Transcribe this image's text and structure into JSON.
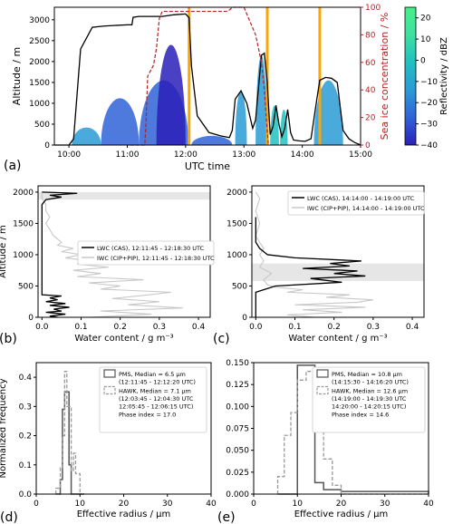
{
  "colors": {
    "black": "#000000",
    "sea_ice": "#b22222",
    "orange": "#ffa500",
    "gray_light": "#c8c8c8",
    "gray_dark": "#555555",
    "band": "#e6e6e6",
    "cmap": [
      "#2a1fb8",
      "#2f63d8",
      "#2a9bd6",
      "#21c0c0",
      "#3fe0a0",
      "#46f08a"
    ]
  },
  "chart_data": [
    {
      "id": "a",
      "panel_label": "(a)",
      "type": "line",
      "xlabel": "UTC time",
      "ylabel": "Altitude / m",
      "y2label": "Sea ice concentration / %",
      "colorbar_label": "Reflectivity / dBZ",
      "xlim": [
        9.75,
        15.0
      ],
      "ylim": [
        0,
        3300
      ],
      "y2lim": [
        0,
        100
      ],
      "colorbar_lim": [
        -40,
        25
      ],
      "xticks": [
        10,
        11,
        12,
        13,
        14,
        15
      ],
      "xtick_labels": [
        "10:00",
        "11:00",
        "12:00",
        "13:00",
        "14:00",
        "15:00"
      ],
      "yticks": [
        0,
        500,
        1000,
        1500,
        2000,
        2500,
        3000
      ],
      "y2ticks": [
        0,
        20,
        40,
        60,
        80,
        100
      ],
      "colorbar_ticks": [
        -40,
        -30,
        -20,
        -10,
        0,
        10,
        20
      ],
      "series": [
        {
          "kind": "altitude",
          "x": [
            9.75,
            10.0,
            10.08,
            10.2,
            10.4,
            10.6,
            11.0,
            11.08,
            11.1,
            11.2,
            11.6,
            11.8,
            12.0,
            12.06,
            12.1,
            12.2,
            12.4,
            12.6,
            12.75,
            12.8,
            12.85,
            12.95,
            13.05,
            13.15,
            13.2,
            13.3,
            13.35,
            13.4,
            13.45,
            13.5,
            13.55,
            13.6,
            13.65,
            13.7,
            13.75,
            13.8,
            13.85,
            13.95,
            14.05,
            14.15,
            14.25,
            14.3,
            14.4,
            14.5,
            14.6,
            14.7,
            14.8,
            14.9,
            15.0
          ],
          "y": [
            0,
            0,
            150,
            2300,
            2820,
            2850,
            2880,
            2880,
            3060,
            3080,
            3080,
            3120,
            3140,
            3050,
            1900,
            700,
            300,
            220,
            180,
            350,
            1100,
            1300,
            1000,
            400,
            600,
            2150,
            2200,
            1500,
            250,
            450,
            950,
            500,
            200,
            400,
            850,
            300,
            120,
            100,
            90,
            150,
            1100,
            1550,
            1620,
            1600,
            1500,
            350,
            150,
            60,
            0
          ]
        },
        {
          "kind": "sea_ice",
          "x": [
            11.05,
            11.3,
            11.32,
            11.35,
            11.45,
            11.5,
            11.55,
            11.6,
            12.7,
            12.75,
            12.8,
            13.0,
            13.05,
            13.1,
            13.2,
            13.25,
            13.3,
            13.35,
            13.4,
            13.42
          ],
          "y": [
            0,
            0,
            15,
            50,
            58,
            70,
            92,
            97,
            97,
            98,
            100,
            100,
            95,
            90,
            80,
            70,
            60,
            40,
            10,
            0
          ]
        }
      ],
      "radar_clouds": [
        {
          "x0": 10.05,
          "x1": 10.55,
          "top": 420,
          "color_index": 2
        },
        {
          "x0": 10.55,
          "x1": 11.2,
          "top": 1120,
          "color_index": 1
        },
        {
          "x0": 11.2,
          "x1": 12.05,
          "top": 1550,
          "color_index": 1
        },
        {
          "x0": 11.5,
          "x1": 12.0,
          "top": 2400,
          "color_index": 0
        },
        {
          "x0": 12.1,
          "x1": 12.8,
          "top": 220,
          "color_index": 1
        },
        {
          "x0": 12.85,
          "x1": 13.05,
          "top": 1300,
          "color_index": 2
        },
        {
          "x0": 13.2,
          "x1": 13.4,
          "top": 2150,
          "color_index": 2
        },
        {
          "x0": 13.45,
          "x1": 13.6,
          "top": 950,
          "color_index": 3
        },
        {
          "x0": 13.62,
          "x1": 13.75,
          "top": 850,
          "color_index": 3
        },
        {
          "x0": 14.2,
          "x1": 14.7,
          "top": 1550,
          "color_index": 2
        }
      ],
      "highlight_times": [
        12.06,
        13.4,
        14.3
      ]
    },
    {
      "id": "b",
      "panel_label": "(b)",
      "type": "line",
      "xlabel": "Water content / g m⁻³",
      "ylabel": "Altitude / m",
      "xlim": [
        -0.01,
        0.43
      ],
      "ylim": [
        0,
        2100
      ],
      "xticks": [
        0.0,
        0.1,
        0.2,
        0.3,
        0.4
      ],
      "xtick_labels": [
        "0.0",
        "0.1",
        "0.2",
        "0.3",
        "0.4"
      ],
      "yticks": [
        0,
        500,
        1000,
        1500,
        2000
      ],
      "band": [
        1880,
        2000
      ],
      "legend_position": "center-right",
      "series": [
        {
          "name": "LWC (CAS), 12:11:45 - 12:18:30 UTC",
          "color": "black",
          "y": [
            0,
            20,
            50,
            80,
            100,
            130,
            160,
            190,
            220,
            250,
            280,
            310,
            340,
            360,
            400,
            1800,
            1880,
            1920,
            1950,
            1980,
            2000
          ],
          "x": [
            0.04,
            0.02,
            0.06,
            0.01,
            0.05,
            0.03,
            0.07,
            0.02,
            0.06,
            0.01,
            0.04,
            0.02,
            0.05,
            0.0,
            0.0,
            0.0,
            0.01,
            0.05,
            0.02,
            0.09,
            0.0
          ]
        },
        {
          "name": "IWC (CIP+PIP), 12:11:45 - 12:18:30 UTC",
          "color": "gray_light",
          "y": [
            0,
            50,
            100,
            150,
            200,
            250,
            300,
            350,
            400,
            450,
            500,
            550,
            600,
            650,
            700,
            750,
            800,
            850,
            900,
            950,
            1000,
            1050,
            1100,
            1150,
            1200,
            1300,
            1400,
            1500,
            1600,
            1700,
            1800,
            1900,
            2000
          ],
          "x": [
            0.12,
            0.28,
            0.15,
            0.36,
            0.22,
            0.3,
            0.18,
            0.26,
            0.33,
            0.15,
            0.2,
            0.12,
            0.26,
            0.09,
            0.15,
            0.08,
            0.17,
            0.09,
            0.12,
            0.06,
            0.1,
            0.05,
            0.08,
            0.04,
            0.05,
            0.03,
            0.02,
            0.01,
            0.02,
            0.01,
            0.01,
            0.0,
            0.0
          ]
        }
      ]
    },
    {
      "id": "c",
      "panel_label": "(c)",
      "type": "line",
      "xlabel": "Water content / g m⁻³",
      "ylabel": "",
      "xlim": [
        -0.01,
        0.43
      ],
      "ylim": [
        0,
        2100
      ],
      "xticks": [
        0.0,
        0.1,
        0.2,
        0.3,
        0.4
      ],
      "xtick_labels": [
        "0.0",
        "0.1",
        "0.2",
        "0.3",
        "0.4"
      ],
      "yticks": [
        0,
        500,
        1000,
        1500,
        2000
      ],
      "band": [
        580,
        860
      ],
      "legend_position": "top-right",
      "series": [
        {
          "name": "LWC (CAS), 14:14:00 - 14:19:00 UTC",
          "color": "black",
          "y": [
            0,
            400,
            500,
            560,
            620,
            660,
            700,
            740,
            780,
            820,
            860,
            900,
            950,
            1000,
            1100,
            1200,
            1600
          ],
          "x": [
            0.0,
            0.0,
            0.05,
            0.22,
            0.14,
            0.28,
            0.2,
            0.26,
            0.12,
            0.24,
            0.19,
            0.27,
            0.1,
            0.03,
            0.01,
            0.0,
            0.0
          ]
        },
        {
          "name": "IWC (CIP+PIP), 14:14:00 - 14:19:00 UTC",
          "color": "gray_light",
          "y": [
            0,
            40,
            80,
            120,
            160,
            200,
            240,
            280,
            320,
            360,
            400,
            440,
            480,
            520,
            600,
            700,
            800,
            900,
            1000,
            1100,
            1300,
            1500,
            1700,
            1900,
            2000
          ],
          "x": [
            0.15,
            0.08,
            0.22,
            0.12,
            0.28,
            0.1,
            0.26,
            0.3,
            0.18,
            0.24,
            0.08,
            0.12,
            0.05,
            0.03,
            0.02,
            0.04,
            0.01,
            0.02,
            0.01,
            0.02,
            0.0,
            0.01,
            0.0,
            0.01,
            0.0
          ]
        }
      ]
    },
    {
      "id": "d",
      "panel_label": "(d)",
      "type": "bar",
      "xlabel": "Effective radius / μm",
      "ylabel": "Normalized frequency",
      "xlim": [
        0,
        40
      ],
      "ylim": [
        0,
        0.45
      ],
      "xticks": [
        0,
        10,
        20,
        30,
        40
      ],
      "yticks": [
        0.0,
        0.1,
        0.2,
        0.3,
        0.4
      ],
      "ytick_labels": [
        "0.0",
        "0.1",
        "0.2",
        "0.3",
        "0.4"
      ],
      "legend_position": "top-right",
      "bin_edges": [
        4.5,
        5.5,
        6.0,
        6.5,
        7.0,
        7.5,
        8.0,
        8.5,
        9.0,
        10.0,
        11.0
      ],
      "series": [
        {
          "name": "PMS, Median = 6.5 μm (12:11:45 - 12:12:20 UTC)",
          "style": "solid",
          "values": [
            0.0,
            0.05,
            0.29,
            0.35,
            0.35,
            0.1,
            0.0,
            0.0,
            0.0,
            0.0
          ]
        },
        {
          "name": "HAWK, Median = 7.1 μm (12:03:45 - 12:04:30 UTC; 12:05:45 - 12:06:15 UTC)",
          "style": "dashed",
          "values": [
            0.02,
            0.09,
            0.2,
            0.42,
            0.3,
            0.3,
            0.08,
            0.14,
            0.07,
            0.0
          ]
        }
      ],
      "phase_index_label": "Phase index = 17.0"
    },
    {
      "id": "e",
      "panel_label": "(e)",
      "type": "bar",
      "xlabel": "Effective radius / μm",
      "ylabel": "",
      "xlim": [
        0,
        40
      ],
      "ylim": [
        0,
        0.15
      ],
      "xticks": [
        0,
        10,
        20,
        30,
        40
      ],
      "yticks": [
        0.0,
        0.025,
        0.05,
        0.075,
        0.1,
        0.125,
        0.15
      ],
      "ytick_labels": [
        "0.000",
        "0.025",
        "0.050",
        "0.075",
        "0.100",
        "0.125",
        "0.150"
      ],
      "legend_position": "top-right",
      "bin_edges": [
        5.5,
        7.0,
        8.5,
        10.0,
        12.0,
        14.0,
        16.0,
        18.0,
        20.0,
        23.0,
        26.0,
        30.0,
        40.0
      ],
      "series": [
        {
          "name": "PMS, Median = 10.8 μm (14:15:30 - 14:16:20 UTC)",
          "style": "solid",
          "values": [
            0.0,
            0.0,
            0.0,
            0.147,
            0.147,
            0.013,
            0.005,
            0.005,
            0.003,
            0.003,
            0.003,
            0.003
          ]
        },
        {
          "name": "HAWK, Median = 12.6 μm (14:19:00 - 14:19:30 UTC; 14:20:00 - 14:20:15 UTC)",
          "style": "dashed",
          "values": [
            0.02,
            0.067,
            0.093,
            0.13,
            0.14,
            0.12,
            0.04,
            0.01,
            0.0,
            0.0,
            0.0,
            0.0
          ]
        }
      ],
      "phase_index_label": "Phase index = 14.6"
    }
  ]
}
